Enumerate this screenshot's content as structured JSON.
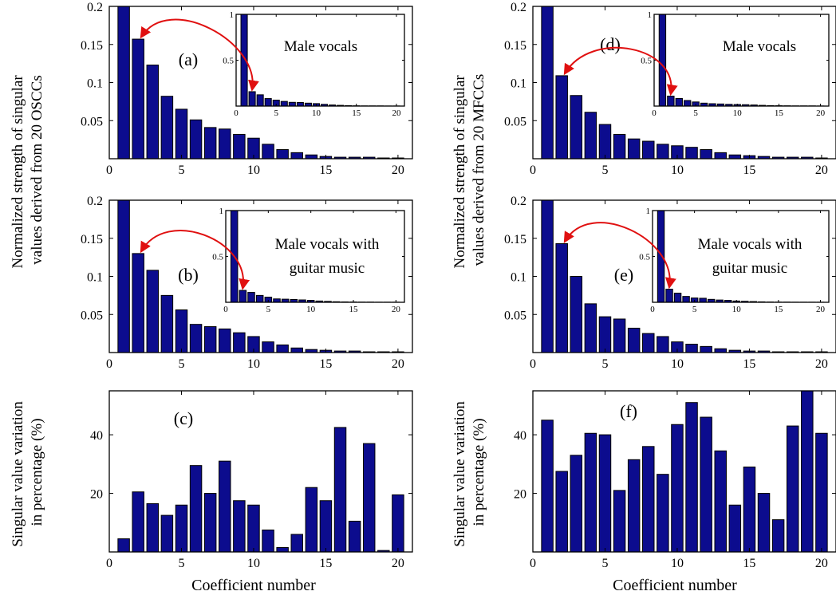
{
  "ylabels": {
    "left_top": [
      "Normalized strength of singular",
      "values derived from 20 OSCCs"
    ],
    "right_top": [
      "Normalized strength of singular",
      "values derived from 20 MFCCs"
    ],
    "left_bottom": [
      "Singular value variation",
      "in percentage (%)"
    ],
    "right_bottom": [
      "Singular value variation",
      "in percentage (%)"
    ]
  },
  "xlabel": "Coefficient number",
  "colors": {
    "bar": "#0c0c8e",
    "arrow": "#e01010"
  },
  "chart_data": [
    {
      "id": "a",
      "type": "bar",
      "label": "(a)",
      "x": [
        1,
        2,
        3,
        4,
        5,
        6,
        7,
        8,
        9,
        10,
        11,
        12,
        13,
        14,
        15,
        16,
        17,
        18,
        19,
        20
      ],
      "values": [
        0.2,
        0.157,
        0.123,
        0.082,
        0.065,
        0.051,
        0.041,
        0.039,
        0.032,
        0.027,
        0.019,
        0.012,
        0.008,
        0.005,
        0.003,
        0.002,
        0.002,
        0.002,
        0.001,
        0.001
      ],
      "xlim": [
        0,
        21
      ],
      "ylim": [
        0,
        0.2
      ],
      "xticks": [
        "0",
        "5",
        "10",
        "15",
        "20"
      ],
      "yticks": [
        "0.2",
        "0.15",
        "0.1",
        "0.05"
      ],
      "inset": {
        "title_lines": [
          "Male vocals"
        ],
        "x": [
          1,
          2,
          3,
          4,
          5,
          6,
          7,
          8,
          9,
          10,
          11,
          12,
          13,
          14,
          15,
          16,
          17,
          18,
          19,
          20
        ],
        "values": [
          1,
          0.157,
          0.123,
          0.082,
          0.065,
          0.051,
          0.041,
          0.039,
          0.032,
          0.027,
          0.019,
          0.012,
          0.008,
          0.005,
          0.003,
          0.002,
          0.002,
          0.002,
          0.001,
          0.001
        ],
        "xlim": [
          0,
          21
        ],
        "ylim": [
          0,
          1
        ],
        "xticks": [
          "0",
          "5",
          "10",
          "15",
          "20"
        ],
        "yticks": [
          "1",
          "0.5"
        ]
      }
    },
    {
      "id": "b",
      "type": "bar",
      "label": "(b)",
      "x": [
        1,
        2,
        3,
        4,
        5,
        6,
        7,
        8,
        9,
        10,
        11,
        12,
        13,
        14,
        15,
        16,
        17,
        18,
        19,
        20
      ],
      "values": [
        0.2,
        0.13,
        0.108,
        0.075,
        0.056,
        0.037,
        0.034,
        0.031,
        0.026,
        0.021,
        0.014,
        0.01,
        0.006,
        0.004,
        0.003,
        0.002,
        0.002,
        0.001,
        0.001,
        0.001
      ],
      "xlim": [
        0,
        21
      ],
      "ylim": [
        0,
        0.2
      ],
      "xticks": [
        "0",
        "5",
        "10",
        "15",
        "20"
      ],
      "yticks": [
        "0.2",
        "0.15",
        "0.1",
        "0.05"
      ],
      "inset": {
        "title_lines": [
          "Male vocals with",
          "guitar music"
        ],
        "x": [
          1,
          2,
          3,
          4,
          5,
          6,
          7,
          8,
          9,
          10,
          11,
          12,
          13,
          14,
          15,
          16,
          17,
          18,
          19,
          20
        ],
        "values": [
          1,
          0.13,
          0.108,
          0.075,
          0.056,
          0.037,
          0.034,
          0.031,
          0.026,
          0.021,
          0.014,
          0.01,
          0.006,
          0.004,
          0.003,
          0.002,
          0.002,
          0.001,
          0.001,
          0.001
        ],
        "xlim": [
          0,
          21
        ],
        "ylim": [
          0,
          1
        ],
        "xticks": [
          "0",
          "5",
          "10",
          "15",
          "20"
        ],
        "yticks": [
          "1",
          "0.5"
        ]
      }
    },
    {
      "id": "c",
      "type": "bar",
      "label": "(c)",
      "x": [
        1,
        2,
        3,
        4,
        5,
        6,
        7,
        8,
        9,
        10,
        11,
        12,
        13,
        14,
        15,
        16,
        17,
        18,
        19,
        20
      ],
      "values": [
        4.5,
        20.5,
        16.5,
        12.5,
        16,
        29.5,
        20,
        31,
        17.5,
        16,
        7.5,
        1.5,
        6,
        22,
        17.5,
        42.5,
        10.5,
        37,
        0.5,
        19.5
      ],
      "xlim": [
        0,
        21
      ],
      "ylim": [
        0,
        55
      ],
      "xticks": [
        "0",
        "5",
        "10",
        "15",
        "20"
      ],
      "yticks": [
        "40",
        "20"
      ]
    },
    {
      "id": "d",
      "type": "bar",
      "label": "(d)",
      "x": [
        1,
        2,
        3,
        4,
        5,
        6,
        7,
        8,
        9,
        10,
        11,
        12,
        13,
        14,
        15,
        16,
        17,
        18,
        19,
        20
      ],
      "values": [
        0.2,
        0.109,
        0.083,
        0.061,
        0.045,
        0.032,
        0.026,
        0.023,
        0.019,
        0.017,
        0.015,
        0.012,
        0.008,
        0.005,
        0.004,
        0.003,
        0.002,
        0.002,
        0.002,
        0.001
      ],
      "xlim": [
        0,
        21
      ],
      "ylim": [
        0,
        0.2
      ],
      "xticks": [
        "0",
        "5",
        "10",
        "15",
        "20"
      ],
      "yticks": [
        "0.2",
        "0.15",
        "0.1",
        "0.05"
      ],
      "inset": {
        "title_lines": [
          "Male vocals"
        ],
        "x": [
          1,
          2,
          3,
          4,
          5,
          6,
          7,
          8,
          9,
          10,
          11,
          12,
          13,
          14,
          15,
          16,
          17,
          18,
          19,
          20
        ],
        "values": [
          1,
          0.109,
          0.083,
          0.061,
          0.045,
          0.032,
          0.026,
          0.023,
          0.019,
          0.017,
          0.015,
          0.012,
          0.008,
          0.005,
          0.004,
          0.003,
          0.002,
          0.002,
          0.002,
          0.001
        ],
        "xlim": [
          0,
          21
        ],
        "ylim": [
          0,
          1
        ],
        "xticks": [
          "0",
          "5",
          "10",
          "15",
          "20"
        ],
        "yticks": [
          "1",
          "0.5"
        ]
      }
    },
    {
      "id": "e",
      "type": "bar",
      "label": "(e)",
      "x": [
        1,
        2,
        3,
        4,
        5,
        6,
        7,
        8,
        9,
        10,
        11,
        12,
        13,
        14,
        15,
        16,
        17,
        18,
        19,
        20
      ],
      "values": [
        0.2,
        0.143,
        0.1,
        0.064,
        0.047,
        0.044,
        0.032,
        0.025,
        0.021,
        0.014,
        0.011,
        0.008,
        0.005,
        0.003,
        0.002,
        0.002,
        0.001,
        0.001,
        0.001,
        0.001
      ],
      "xlim": [
        0,
        21
      ],
      "ylim": [
        0,
        0.2
      ],
      "xticks": [
        "0",
        "5",
        "10",
        "15",
        "20"
      ],
      "yticks": [
        "0.2",
        "0.15",
        "0.1",
        "0.05"
      ],
      "inset": {
        "title_lines": [
          "Male vocals with",
          "guitar music"
        ],
        "x": [
          1,
          2,
          3,
          4,
          5,
          6,
          7,
          8,
          9,
          10,
          11,
          12,
          13,
          14,
          15,
          16,
          17,
          18,
          19,
          20
        ],
        "values": [
          1,
          0.143,
          0.1,
          0.064,
          0.047,
          0.044,
          0.032,
          0.025,
          0.021,
          0.014,
          0.011,
          0.008,
          0.005,
          0.003,
          0.002,
          0.002,
          0.001,
          0.001,
          0.001,
          0.001
        ],
        "xlim": [
          0,
          21
        ],
        "ylim": [
          0,
          1
        ],
        "xticks": [
          "0",
          "5",
          "10",
          "15",
          "20"
        ],
        "yticks": [
          "1",
          "0.5"
        ]
      }
    },
    {
      "id": "f",
      "type": "bar",
      "label": "(f)",
      "x": [
        1,
        2,
        3,
        4,
        5,
        6,
        7,
        8,
        9,
        10,
        11,
        12,
        13,
        14,
        15,
        16,
        17,
        18,
        19,
        20
      ],
      "values": [
        45,
        27.5,
        33,
        40.5,
        40,
        21,
        31.5,
        36,
        26.5,
        43.5,
        51,
        46,
        34.5,
        16,
        29,
        20,
        11,
        43,
        55,
        40.5
      ],
      "xlim": [
        0,
        21
      ],
      "ylim": [
        0,
        55
      ],
      "xticks": [
        "0",
        "5",
        "10",
        "15",
        "20"
      ],
      "yticks": [
        "40",
        "20"
      ]
    }
  ]
}
